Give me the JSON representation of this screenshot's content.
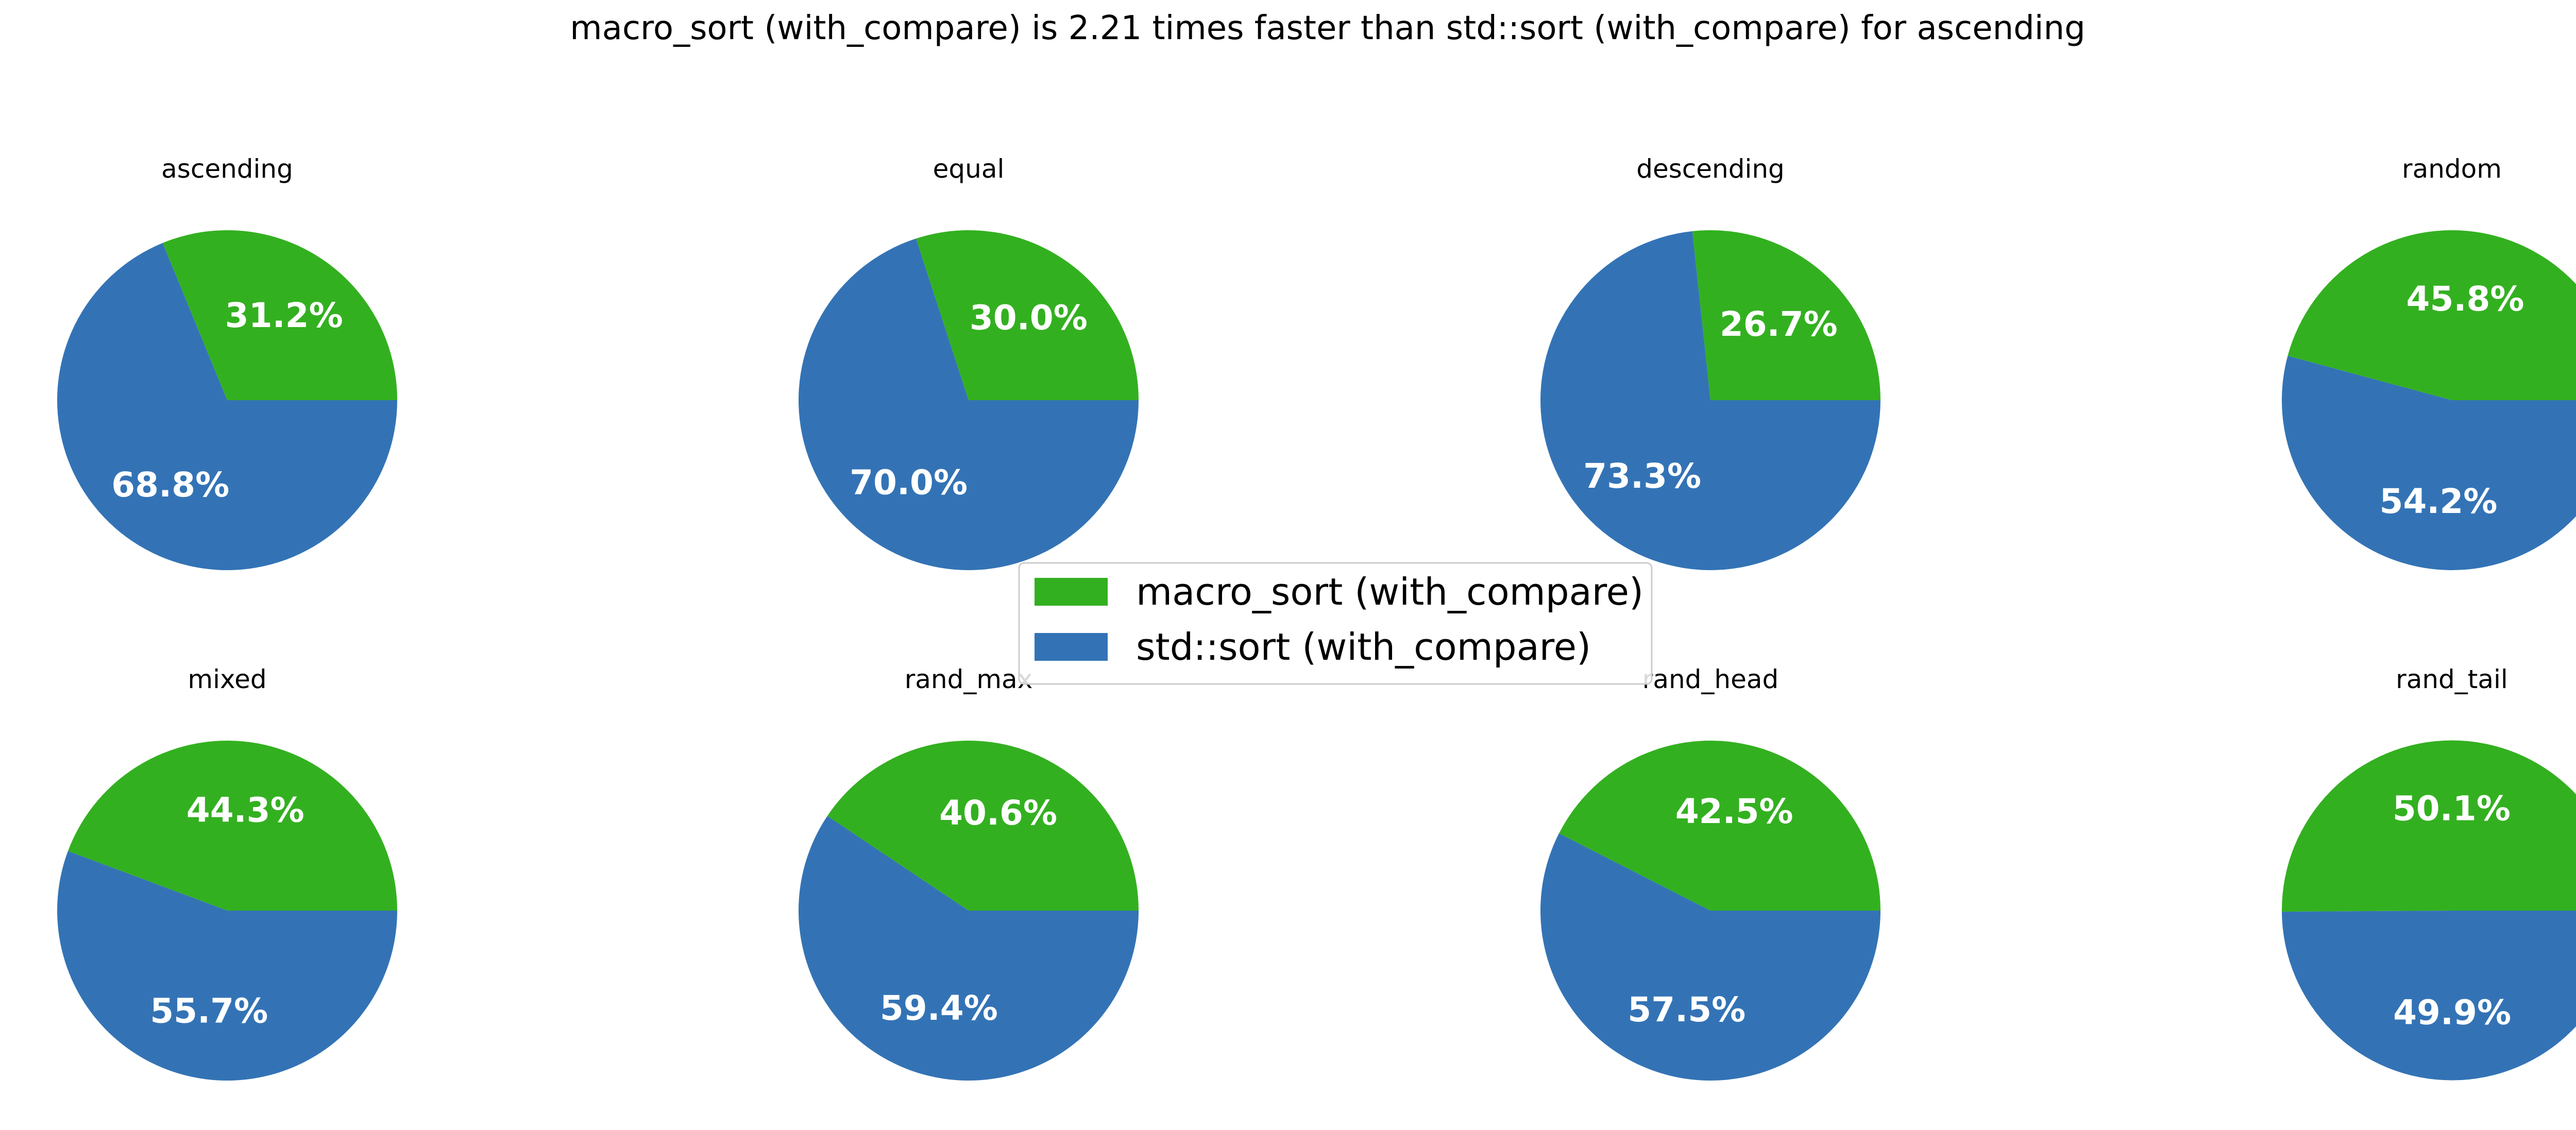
{
  "chart_data": {
    "type": "pie",
    "title": "macro_sort (with_compare) is 2.21 times faster than std::sort (with_compare) for ascending",
    "series_names": [
      "macro_sort (with_compare)",
      "std::sort (with_compare)"
    ],
    "colors": [
      "#33b020",
      "#3373b5"
    ],
    "legend_position": "center",
    "pies": [
      {
        "title": "ascending",
        "values": [
          31.2,
          68.8
        ],
        "labels": [
          "31.2%",
          "68.8%"
        ]
      },
      {
        "title": "equal",
        "values": [
          30.0,
          70.0
        ],
        "labels": [
          "30.0%",
          "70.0%"
        ]
      },
      {
        "title": "descending",
        "values": [
          26.7,
          73.3
        ],
        "labels": [
          "26.7%",
          "73.3%"
        ]
      },
      {
        "title": "random",
        "values": [
          45.8,
          54.2
        ],
        "labels": [
          "45.8%",
          "54.2%"
        ]
      },
      {
        "title": "mixed",
        "values": [
          44.3,
          55.7
        ],
        "labels": [
          "44.3%",
          "55.7%"
        ]
      },
      {
        "title": "rand_max",
        "values": [
          40.6,
          59.4
        ],
        "labels": [
          "40.6%",
          "59.4%"
        ]
      },
      {
        "title": "rand_head",
        "values": [
          42.5,
          57.5
        ],
        "labels": [
          "42.5%",
          "57.5%"
        ]
      },
      {
        "title": "rand_tail",
        "values": [
          50.1,
          49.9
        ],
        "labels": [
          "50.1%",
          "49.9%"
        ]
      }
    ]
  }
}
